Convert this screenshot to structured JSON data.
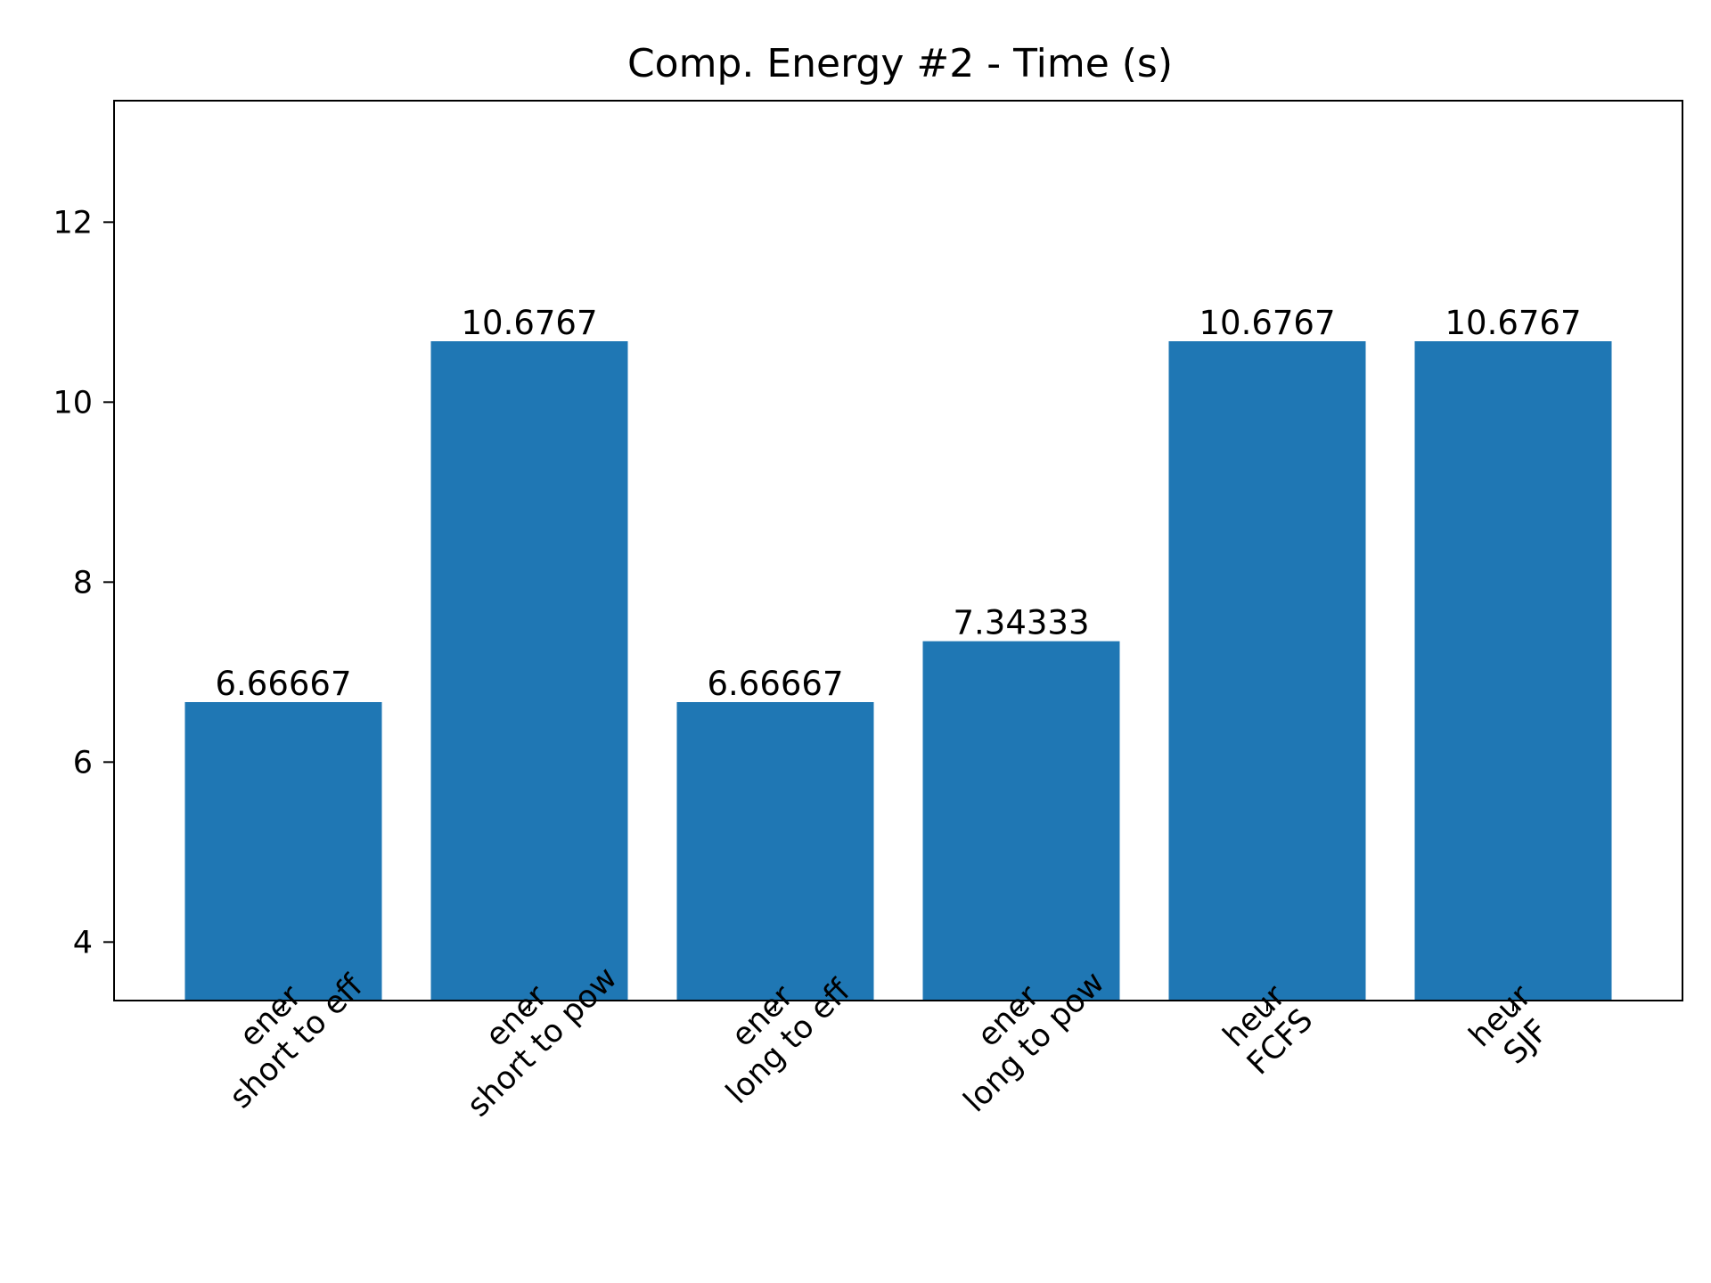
{
  "chart_data": {
    "type": "bar",
    "title": "Comp. Energy #2 - Time (s)",
    "xlabel": "",
    "ylabel": "",
    "categories": [
      [
        "ener",
        "short to eff"
      ],
      [
        "ener",
        "short to pow"
      ],
      [
        "ener",
        "long to eff"
      ],
      [
        "ener",
        "long to pow"
      ],
      [
        "heur",
        "FCFS"
      ],
      [
        "heur",
        "SJF"
      ]
    ],
    "values": [
      6.66667,
      10.6767,
      6.66667,
      7.34333,
      10.6767,
      10.6767
    ],
    "value_labels": [
      "6.66667",
      "10.6767",
      "6.66667",
      "7.34333",
      "10.6767",
      "10.6767"
    ],
    "yticks": [
      4,
      6,
      8,
      10,
      12
    ],
    "ylim": [
      3.35,
      13.35
    ],
    "bar_color": "#1f77b4",
    "grid": false,
    "legend": "none"
  }
}
